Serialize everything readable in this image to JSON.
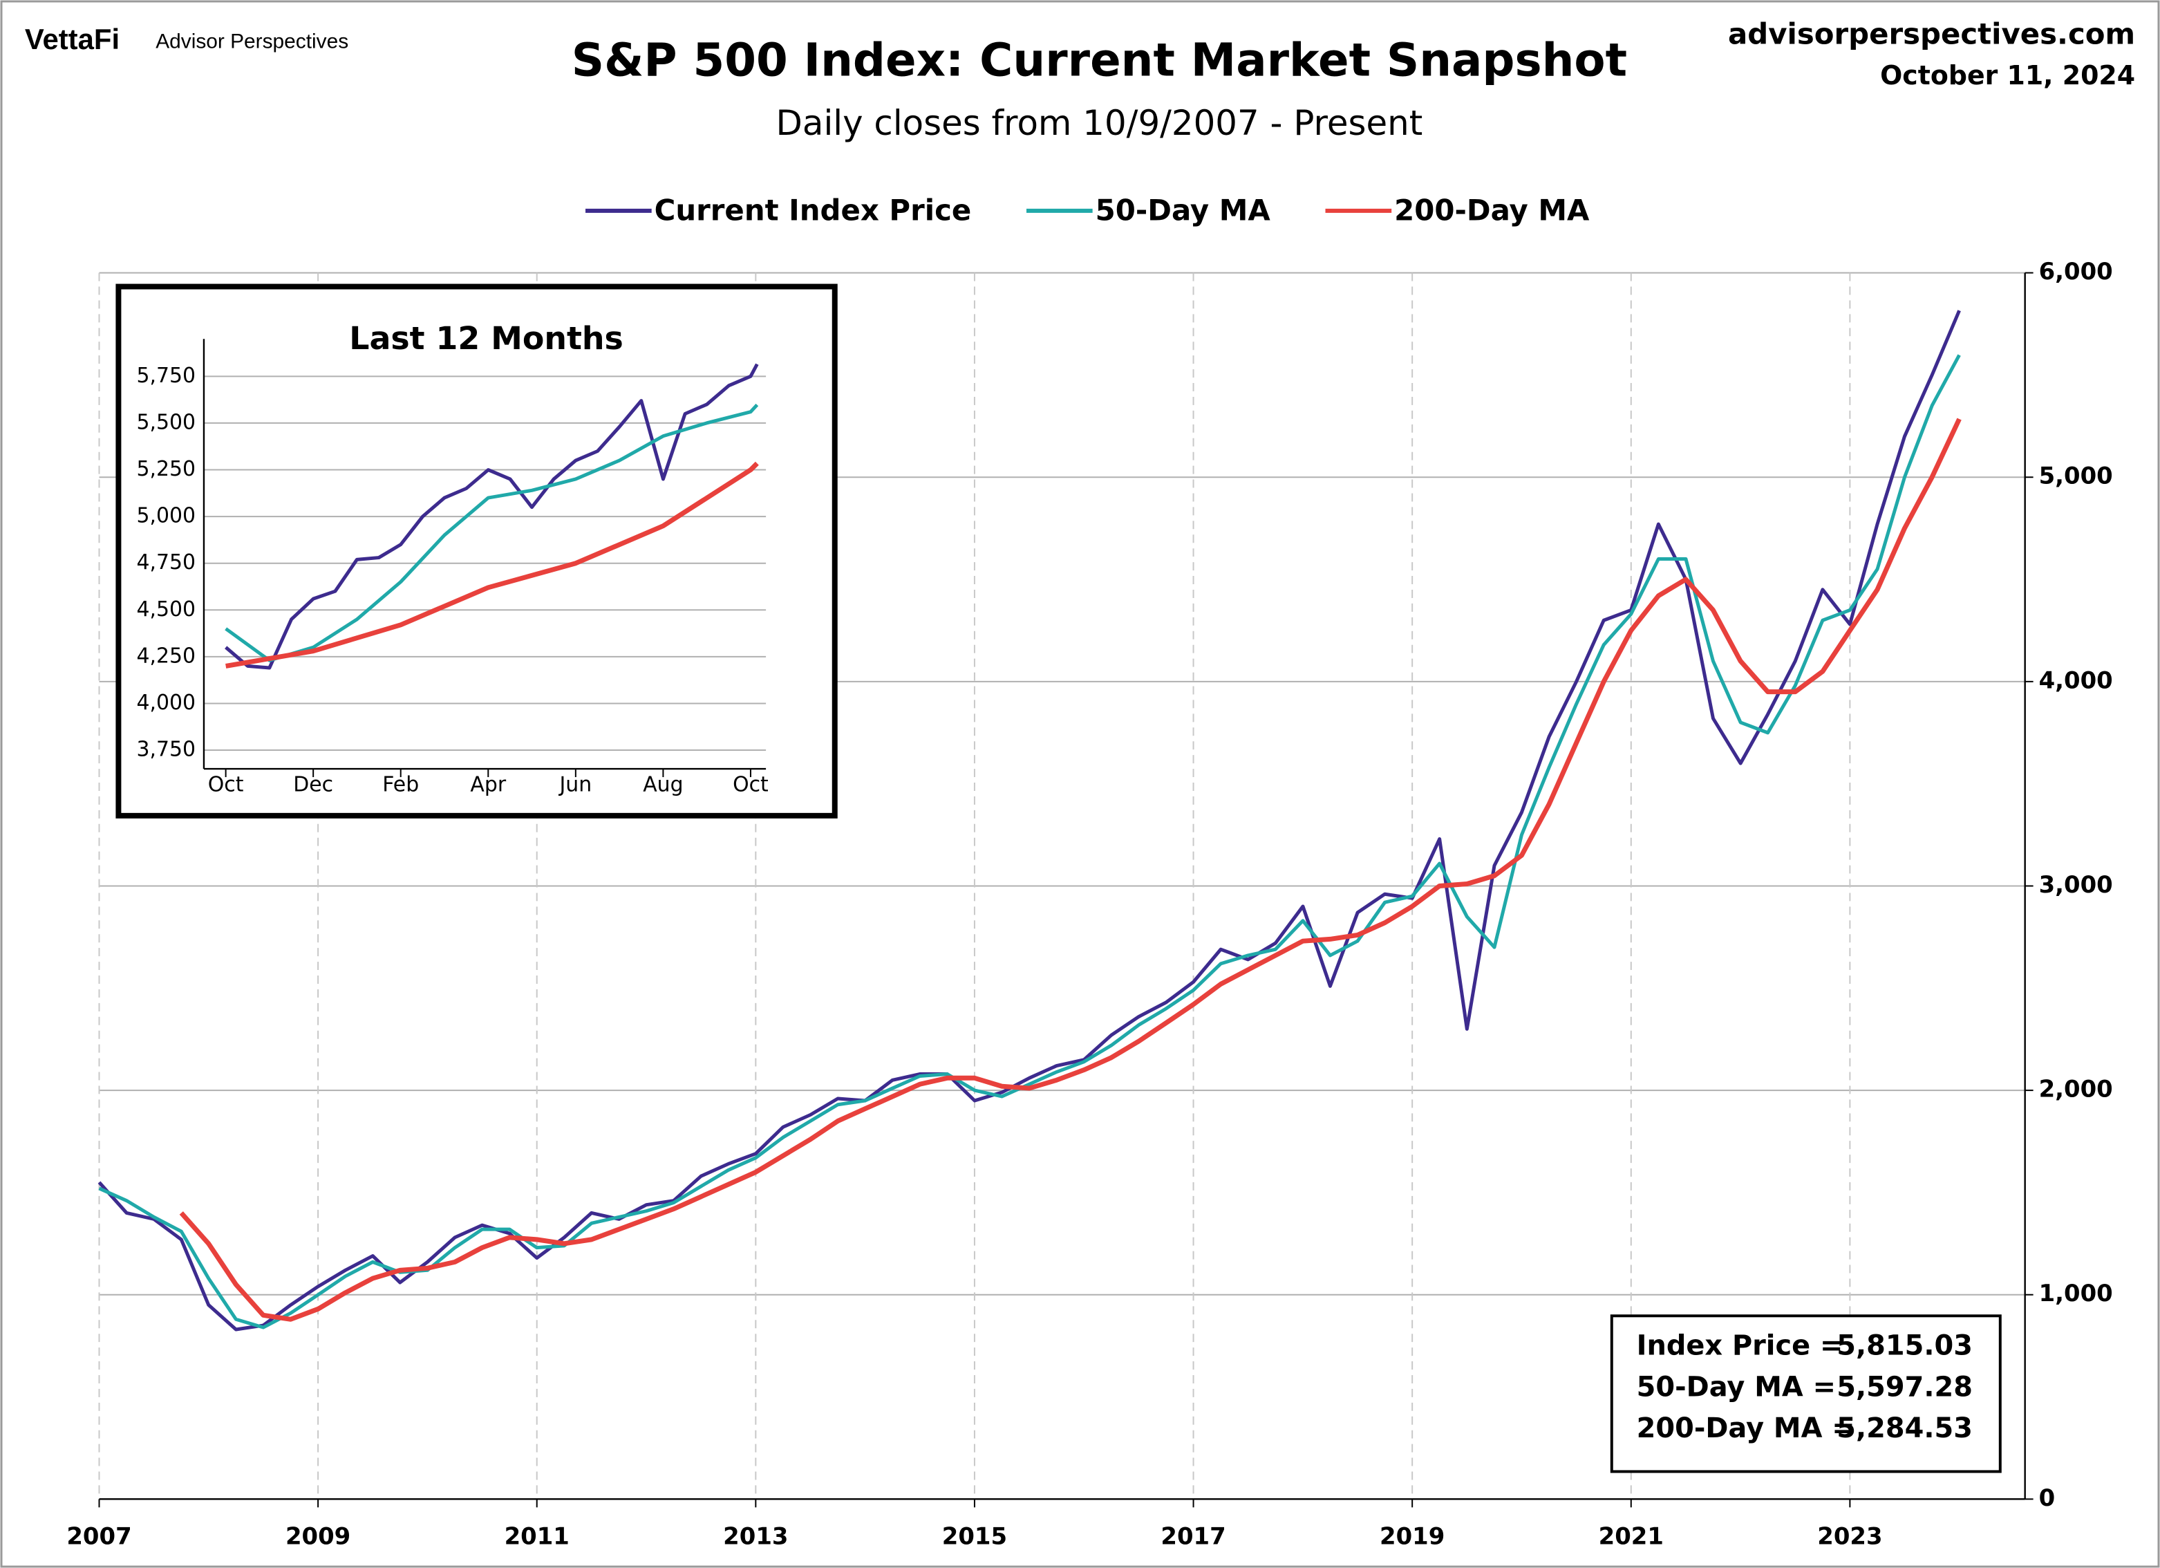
{
  "header": {
    "brand": "VettaFi",
    "publisher": "Advisor Perspectives",
    "site": "advisorperspectives.com",
    "date": "October 11, 2024"
  },
  "chart_data": [
    {
      "type": "line",
      "title": "S&P 500 Index: Current Market Snapshot",
      "subtitle": "Daily closes from 10/9/2007 - Present",
      "x": [
        2007,
        2007.25,
        2007.5,
        2007.75,
        2008,
        2008.25,
        2008.5,
        2008.75,
        2009,
        2009.25,
        2009.5,
        2009.75,
        2010,
        2010.25,
        2010.5,
        2010.75,
        2011,
        2011.25,
        2011.5,
        2011.75,
        2012,
        2012.25,
        2012.5,
        2012.75,
        2013,
        2013.25,
        2013.5,
        2013.75,
        2014,
        2014.25,
        2014.5,
        2014.75,
        2015,
        2015.25,
        2015.5,
        2015.75,
        2016,
        2016.25,
        2016.5,
        2016.75,
        2017,
        2017.25,
        2017.5,
        2017.75,
        2018,
        2018.25,
        2018.5,
        2018.75,
        2019,
        2019.25,
        2019.5,
        2019.75,
        2020,
        2020.25,
        2020.5,
        2020.75,
        2021,
        2021.25,
        2021.5,
        2021.75,
        2022,
        2022.25,
        2022.5,
        2022.75,
        2023,
        2023.25,
        2023.5,
        2023.75,
        2024
      ],
      "series": [
        {
          "name": "Current Index Price",
          "color": "#3d2b8e",
          "values": [
            1550,
            1400,
            1370,
            1270,
            950,
            830,
            850,
            950,
            1040,
            1120,
            1190,
            1060,
            1160,
            1280,
            1340,
            1300,
            1180,
            1280,
            1400,
            1370,
            1440,
            1460,
            1580,
            1640,
            1690,
            1820,
            1880,
            1960,
            1950,
            2050,
            2080,
            2080,
            1950,
            1990,
            2060,
            2120,
            2150,
            2270,
            2360,
            2430,
            2530,
            2690,
            2640,
            2720,
            2900,
            2510,
            2870,
            2960,
            2940,
            3230,
            2300,
            3100,
            3360,
            3730,
            4000,
            4300,
            4350,
            4770,
            4500,
            3820,
            3600,
            3840,
            4100,
            4450,
            4280,
            4770,
            5200,
            5500,
            5815.03
          ]
        },
        {
          "name": "50-Day MA",
          "color": "#20a9a9",
          "values": [
            1520,
            1460,
            1380,
            1310,
            1080,
            880,
            840,
            910,
            1000,
            1090,
            1160,
            1110,
            1120,
            1230,
            1320,
            1320,
            1230,
            1240,
            1350,
            1380,
            1410,
            1450,
            1530,
            1610,
            1670,
            1770,
            1850,
            1930,
            1950,
            2010,
            2070,
            2080,
            2000,
            1970,
            2030,
            2090,
            2140,
            2220,
            2320,
            2400,
            2490,
            2620,
            2660,
            2690,
            2830,
            2660,
            2730,
            2920,
            2950,
            3110,
            2850,
            2700,
            3250,
            3580,
            3890,
            4180,
            4330,
            4600,
            4600,
            4100,
            3800,
            3750,
            3980,
            4300,
            4350,
            4550,
            5000,
            5350,
            5597.28
          ]
        },
        {
          "name": "200-Day MA",
          "color": "#e8413c",
          "values": [
            null,
            null,
            null,
            1400,
            1250,
            1050,
            900,
            880,
            930,
            1010,
            1080,
            1120,
            1130,
            1160,
            1230,
            1280,
            1270,
            1250,
            1270,
            1320,
            1370,
            1420,
            1480,
            1540,
            1600,
            1680,
            1760,
            1850,
            1910,
            1970,
            2030,
            2060,
            2060,
            2020,
            2010,
            2050,
            2100,
            2160,
            2240,
            2330,
            2420,
            2520,
            2590,
            2660,
            2730,
            2740,
            2760,
            2820,
            2900,
            3000,
            3010,
            3050,
            3150,
            3400,
            3700,
            4000,
            4250,
            4420,
            4500,
            4350,
            4100,
            3950,
            3950,
            4050,
            4250,
            4450,
            4750,
            5000,
            5284.53
          ]
        }
      ],
      "xlim": [
        2007,
        2024.6
      ],
      "xticks": [
        2007,
        2009,
        2011,
        2013,
        2015,
        2017,
        2019,
        2021,
        2023
      ],
      "ylim": [
        0,
        6000
      ],
      "yticks": [
        0,
        {
          "value": 1000,
          "label": "1,000"
        },
        {
          "value": 2000,
          "label": "2,000"
        },
        {
          "value": 3000,
          "label": "3,000"
        },
        {
          "value": 4000,
          "label": "4,000"
        },
        {
          "value": 5000,
          "label": "5,000"
        },
        {
          "value": 6000,
          "label": "6,000"
        }
      ],
      "grid": true,
      "legend": "top",
      "summary": [
        {
          "label": "Index Price =",
          "value": 5815.03,
          "value_label": "5,815.03"
        },
        {
          "label": "50-Day MA =",
          "value": 5597.28,
          "value_label": "5,597.28"
        },
        {
          "label": "200-Day MA =",
          "value": 5284.53,
          "value_label": "5,284.53"
        }
      ]
    },
    {
      "type": "line",
      "title": "Last 12 Months",
      "series": [
        {
          "name": "Current Index Price",
          "color": "#3d2b8e",
          "x": [
            0,
            0.5,
            1,
            1.5,
            2,
            2.5,
            3,
            3.5,
            4,
            4.5,
            5,
            5.5,
            6,
            6.5,
            7,
            7.5,
            8,
            8.5,
            9,
            9.5,
            10,
            10.5,
            11,
            11.5,
            12,
            12.15
          ],
          "values": [
            4300,
            4200,
            4190,
            4450,
            4560,
            4600,
            4770,
            4780,
            4850,
            5000,
            5100,
            5150,
            5250,
            5200,
            5050,
            5200,
            5300,
            5350,
            5480,
            5620,
            5200,
            5550,
            5600,
            5700,
            5750,
            5815.03
          ]
        },
        {
          "name": "50-Day MA",
          "color": "#20a9a9",
          "x": [
            0,
            1,
            2,
            3,
            4,
            5,
            6,
            7,
            8,
            9,
            10,
            11,
            12,
            12.15
          ],
          "values": [
            4400,
            4230,
            4300,
            4450,
            4650,
            4900,
            5100,
            5140,
            5200,
            5300,
            5430,
            5500,
            5560,
            5597.28
          ]
        },
        {
          "name": "200-Day MA",
          "color": "#e8413c",
          "x": [
            0,
            2,
            4,
            6,
            8,
            10,
            12,
            12.15
          ],
          "values": [
            4200,
            4280,
            4420,
            4620,
            4750,
            4950,
            5250,
            5284.53
          ]
        }
      ],
      "xlim": [
        -0.5,
        12.35
      ],
      "xticks": [
        {
          "value": 0,
          "label": "Oct"
        },
        {
          "value": 2,
          "label": "Dec"
        },
        {
          "value": 4,
          "label": "Feb"
        },
        {
          "value": 6,
          "label": "Apr"
        },
        {
          "value": 8,
          "label": "Jun"
        },
        {
          "value": 10,
          "label": "Aug"
        },
        {
          "value": 12,
          "label": "Oct"
        }
      ],
      "ylim": [
        3650,
        5950
      ],
      "yticks": [
        {
          "value": 3750,
          "label": "3,750"
        },
        {
          "value": 4000,
          "label": "4,000"
        },
        {
          "value": 4250,
          "label": "4,250"
        },
        {
          "value": 4500,
          "label": "4,500"
        },
        {
          "value": 4750,
          "label": "4,750"
        },
        {
          "value": 5000,
          "label": "5,000"
        },
        {
          "value": 5250,
          "label": "5,250"
        },
        {
          "value": 5500,
          "label": "5,500"
        },
        {
          "value": 5750,
          "label": "5,750"
        }
      ],
      "grid": true
    }
  ]
}
